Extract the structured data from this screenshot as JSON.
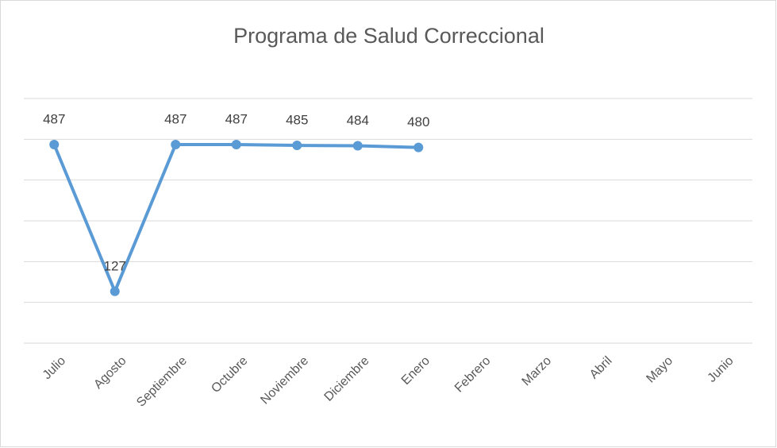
{
  "chart_data": {
    "type": "line",
    "title": "Programa de Salud Correccional",
    "categories": [
      "Julio",
      "Agosto",
      "Septiembre",
      "Octubre",
      "Noviembre",
      "Diciembre",
      "Enero",
      "Febrero",
      "Marzo",
      "Abril",
      "Mayo",
      "Junio"
    ],
    "series": [
      {
        "name": "Programa de Salud Correccional",
        "color": "#5b9bd5",
        "values": [
          487,
          127,
          487,
          487,
          485,
          484,
          480,
          null,
          null,
          null,
          null,
          null
        ]
      }
    ],
    "ylim": [
      0,
      600
    ],
    "yticks": [
      0,
      100,
      200,
      300,
      400,
      500,
      600
    ],
    "grid": true
  }
}
